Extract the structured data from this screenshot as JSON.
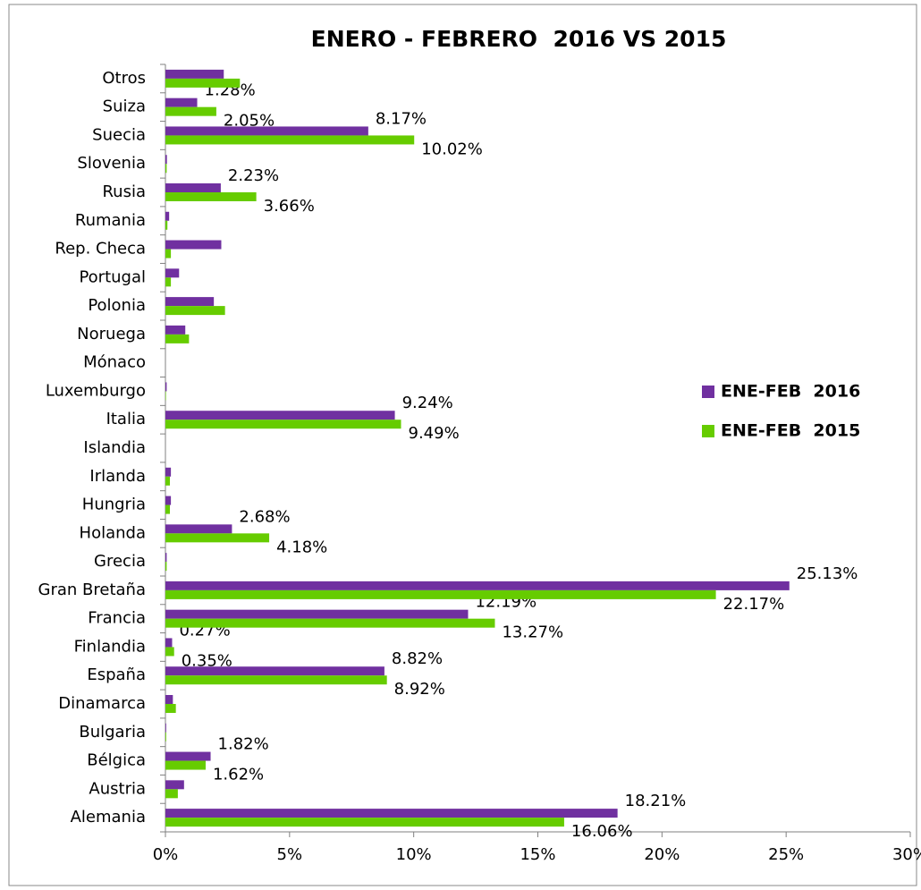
{
  "chart_data": {
    "type": "hbar",
    "title": "ENERO - FEBRERO  2016 VS 2015",
    "categories": [
      "Alemania",
      "Austria",
      "Bélgica",
      "Bulgaria",
      "Dinamarca",
      "España",
      "Finlandia",
      "Francia",
      "Gran Bretaña",
      "Grecia",
      "Holanda",
      "Hungria",
      "Irlanda",
      "Islandia",
      "Italia",
      "Luxemburgo",
      "Mónaco",
      "Noruega",
      "Polonia",
      "Portugal",
      "Rep. Checa",
      "Rumania",
      "Rusia",
      "Slovenia",
      "Suecia",
      "Suiza",
      "Otros"
    ],
    "series": [
      {
        "name": "ENE-FEB  2016",
        "color": "#7030a0",
        "values": [
          18.21,
          0.75,
          1.82,
          0.03,
          0.3,
          8.82,
          0.27,
          12.19,
          25.13,
          0.05,
          2.68,
          0.22,
          0.22,
          0,
          9.24,
          0.05,
          0,
          0.8,
          1.95,
          0.55,
          2.25,
          0.15,
          2.23,
          0.06,
          8.17,
          1.28,
          2.35
        ],
        "value_labels": [
          "18.21%",
          null,
          "1.82%",
          null,
          null,
          "8.82%",
          "0.27%",
          "12.19%",
          "25.13%",
          null,
          "2.68%",
          null,
          null,
          null,
          "9.24%",
          null,
          null,
          null,
          null,
          null,
          null,
          null,
          "2.23%",
          null,
          "8.17%",
          "1.28%",
          null
        ]
      },
      {
        "name": "ENE-FEB  2015",
        "color": "#66cc00",
        "values": [
          16.06,
          0.5,
          1.62,
          0.03,
          0.42,
          8.92,
          0.35,
          13.27,
          22.17,
          0.05,
          4.18,
          0.18,
          0.18,
          0,
          9.49,
          0.02,
          0,
          0.95,
          2.4,
          0.22,
          0.22,
          0.08,
          3.66,
          0.05,
          10.02,
          2.05,
          3.0
        ],
        "value_labels": [
          "16.06%",
          null,
          "1.62%",
          null,
          null,
          "8.92%",
          "0.35%",
          "13.27%",
          "22.17%",
          null,
          "4.18%",
          null,
          null,
          null,
          "9.49%",
          null,
          null,
          null,
          null,
          null,
          null,
          null,
          "3.66%",
          null,
          "10.02%",
          "2.05%",
          null
        ]
      }
    ],
    "xlim": [
      0,
      30
    ],
    "xticks": [
      {
        "value": 0,
        "label": "0%"
      },
      {
        "value": 5,
        "label": "5%"
      },
      {
        "value": 10,
        "label": "10%"
      },
      {
        "value": 15,
        "label": "15%"
      },
      {
        "value": 20,
        "label": "20%"
      },
      {
        "value": 25,
        "label": "25%"
      },
      {
        "value": 30,
        "label": "30%"
      }
    ],
    "legend": "right"
  }
}
